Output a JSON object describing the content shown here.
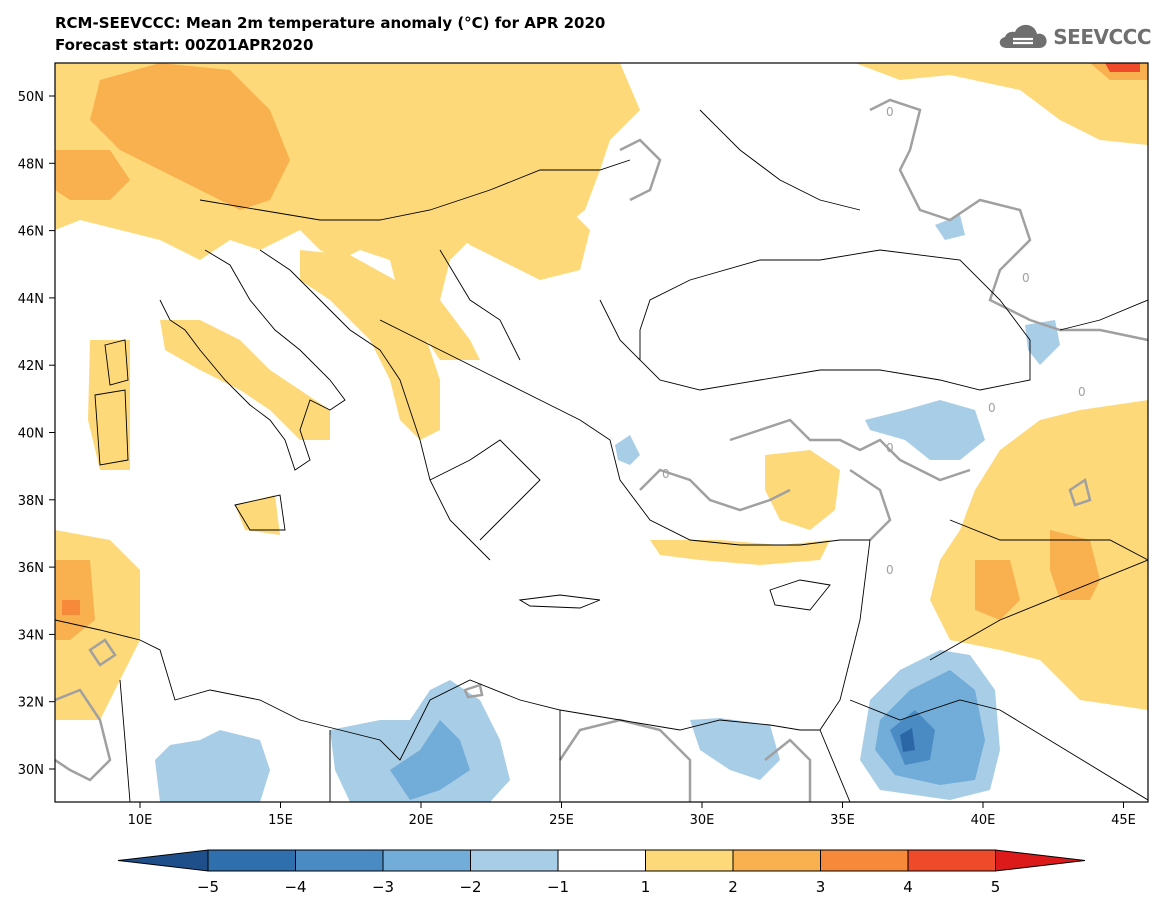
{
  "header": {
    "title": "RCM-SEEVCCC: Mean 2m temperature anomaly (°C) for APR 2020",
    "subtitle": "Forecast start: 00Z01APR2020",
    "logo_text": "SEEVCCC"
  },
  "map": {
    "lon_ticks": [
      "10E",
      "15E",
      "20E",
      "25E",
      "30E",
      "35E",
      "40E",
      "45E"
    ],
    "lat_ticks": [
      "50N",
      "48N",
      "46N",
      "44N",
      "42N",
      "40N",
      "38N",
      "36N",
      "34N",
      "32N",
      "30N"
    ],
    "contour_label": "0",
    "colors": {
      "anom_minus5_minus4": "#2b66a6",
      "anom_minus4_minus3": "#4a8bc4",
      "anom_minus3_minus2": "#72acd8",
      "anom_minus2_minus1": "#a8cde6",
      "anom_1_2": "#fdd97a",
      "anom_2_3": "#f9b04e",
      "anom_3_4": "#f6893a",
      "anom_4_5": "#ef4a2a",
      "contour": "#a0a0a0",
      "borders": "#000000"
    }
  },
  "colorbar": {
    "labels": [
      "-5",
      "-4",
      "-3",
      "-2",
      "-1",
      "1",
      "2",
      "3",
      "4",
      "5"
    ],
    "colors": [
      "#1f4f8a",
      "#2f6fae",
      "#4a8bc4",
      "#72acd8",
      "#a8cde6",
      "#ffffff",
      "#fdd97a",
      "#f9b04e",
      "#f6893a",
      "#ef4a2a",
      "#dd1a1a"
    ]
  }
}
